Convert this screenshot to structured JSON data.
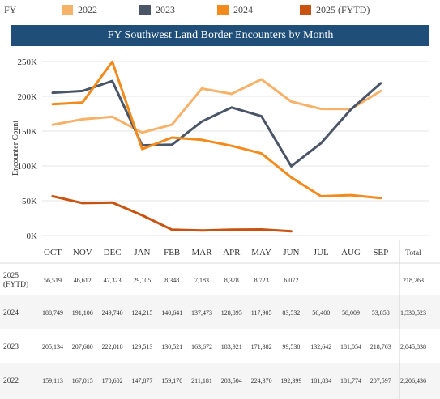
{
  "legend": {
    "title": "FY",
    "items": [
      {
        "label": "2022",
        "color": "#f7b26a"
      },
      {
        "label": "2023",
        "color": "#4a5567"
      },
      {
        "label": "2024",
        "color": "#f28a1c"
      },
      {
        "label": "2025 (FYTD)",
        "color": "#c8520f"
      }
    ]
  },
  "chart_data": {
    "type": "line",
    "title": "FY Southwest Land Border Encounters by Month",
    "ylabel": "Encounter Count",
    "xlabel": "",
    "ylim": [
      0,
      250000
    ],
    "yticks": [
      "0K",
      "50K",
      "100K",
      "150K",
      "200K",
      "250K"
    ],
    "grid": true,
    "legend_position": "top",
    "categories": [
      "OCT",
      "NOV",
      "DEC",
      "JAN",
      "FEB",
      "MAR",
      "APR",
      "MAY",
      "JUN",
      "JUL",
      "AUG",
      "SEP"
    ],
    "total_header": "Total",
    "series": [
      {
        "name": "2022",
        "color": "#f7b26a",
        "values": [
          159113,
          167015,
          170602,
          147877,
          159170,
          211181,
          203504,
          224370,
          192399,
          181834,
          181774,
          207597
        ],
        "labels": [
          "159,113",
          "167,015",
          "170,602",
          "147,877",
          "159,170",
          "211,181",
          "203,504",
          "224,370",
          "192,399",
          "181,834",
          "181,774",
          "207,597"
        ],
        "total": "2,206,436"
      },
      {
        "name": "2023",
        "color": "#4a5567",
        "values": [
          205134,
          207680,
          222018,
          129513,
          130521,
          163672,
          183921,
          171382,
          99538,
          132642,
          181054,
          218763
        ],
        "labels": [
          "205,134",
          "207,680",
          "222,018",
          "129,513",
          "130,521",
          "163,672",
          "183,921",
          "171,382",
          "99,538",
          "132,642",
          "181,054",
          "218,763"
        ],
        "total": "2,045,838"
      },
      {
        "name": "2024",
        "color": "#f28a1c",
        "values": [
          188749,
          191106,
          249740,
          124215,
          140641,
          137473,
          128895,
          117905,
          83532,
          56400,
          58009,
          53858
        ],
        "labels": [
          "188,749",
          "191,106",
          "249,740",
          "124,215",
          "140,641",
          "137,473",
          "128,895",
          "117,905",
          "83,532",
          "56,400",
          "58,009",
          "53,858"
        ],
        "total": "1,530,523"
      },
      {
        "name": "2025 (FYTD)",
        "color": "#c8520f",
        "values": [
          56519,
          46612,
          47323,
          29105,
          8348,
          7183,
          8378,
          8723,
          6072,
          null,
          null,
          null
        ],
        "labels": [
          "56,519",
          "46,612",
          "47,323",
          "29,105",
          "8,348",
          "7,183",
          "8,378",
          "8,723",
          "6,072",
          "",
          "",
          ""
        ],
        "total": "218,263"
      }
    ]
  }
}
